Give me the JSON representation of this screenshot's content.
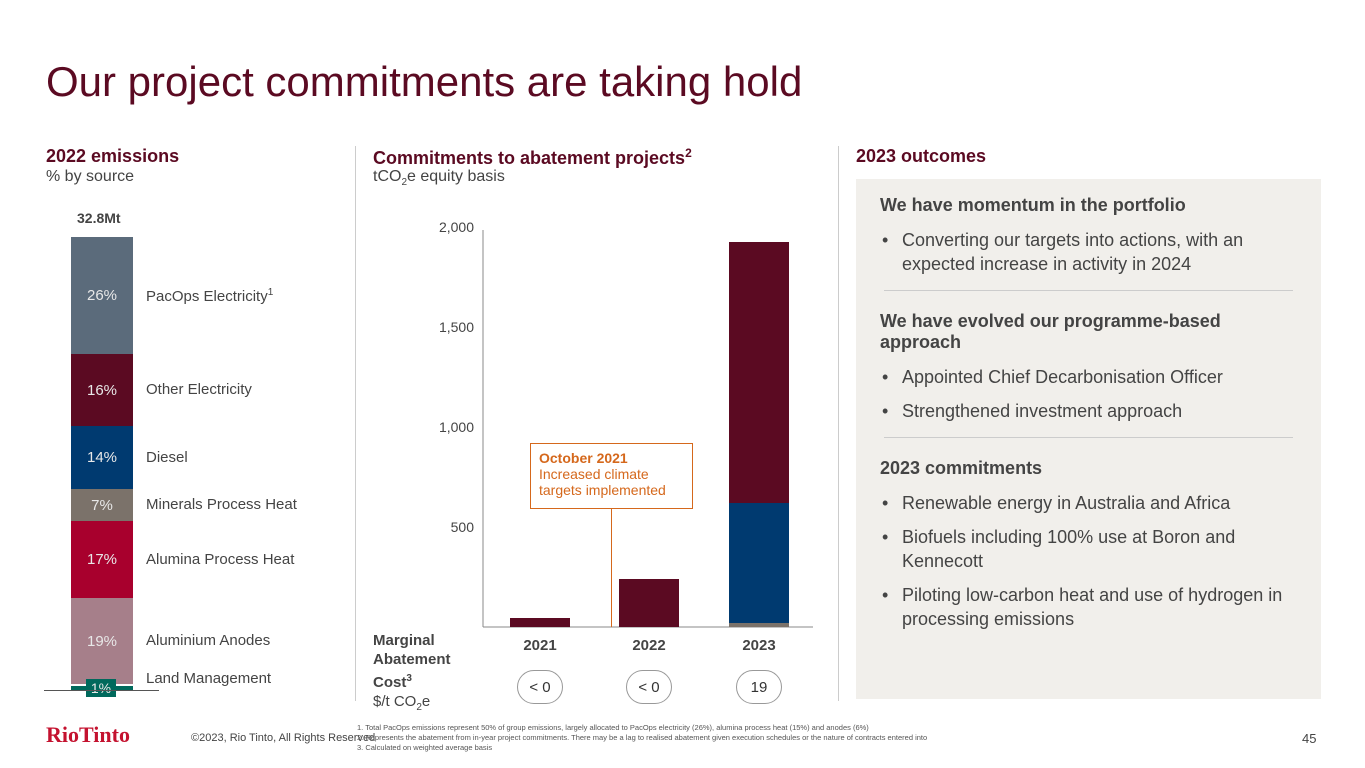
{
  "title": "Our project commitments are taking hold",
  "left": {
    "heading": "2022 emissions",
    "subheading": "% by source",
    "total": "32.8Mt",
    "segments": [
      {
        "pct": "26%",
        "label": "PacOps Electricity",
        "sup": "1",
        "value": 26,
        "color": "#5b6b7b"
      },
      {
        "pct": "16%",
        "label": "Other Electricity",
        "value": 16,
        "color": "#5b0a22"
      },
      {
        "pct": "14%",
        "label": "Diesel",
        "value": 14,
        "color": "#003a70"
      },
      {
        "pct": "7%",
        "label": "Minerals Process Heat",
        "value": 7,
        "color": "#7b726a"
      },
      {
        "pct": "17%",
        "label": "Alumina Process Heat",
        "value": 17,
        "color": "#a8002d"
      },
      {
        "pct": "19%",
        "label": "Aluminium Anodes",
        "value": 19,
        "color": "#a67f8a"
      },
      {
        "pct": "1%",
        "label": "Land Management",
        "value": 1,
        "color": "#00695c"
      }
    ]
  },
  "middle": {
    "heading": "Commitments to abatement projects",
    "heading_sup": "2",
    "subheading_pre": "tCO",
    "subheading_sub": "2",
    "subheading_post": "e equity basis",
    "annotation": {
      "title": "October 2021",
      "line1": "Increased climate",
      "line2": "targets implemented"
    },
    "mac_label1": "Marginal",
    "mac_label2": "Abatement",
    "mac_label3": "Cost",
    "mac_sup": "3",
    "mac_unit_pre": "$/t CO",
    "mac_unit_sub": "2",
    "mac_unit_post": "e",
    "mac_values": [
      "< 0",
      "< 0",
      "19"
    ]
  },
  "chart_data": {
    "type": "bar",
    "stacked": true,
    "categories": [
      "2021",
      "2022",
      "2023"
    ],
    "ylim": [
      0,
      2000
    ],
    "yticks": [
      "500",
      "1,000",
      "1,500",
      "2,000"
    ],
    "ytick_values": [
      500,
      1000,
      1500,
      2000
    ],
    "series": [
      {
        "name": "grey",
        "color": "#7b726a",
        "values": [
          0,
          0,
          20
        ]
      },
      {
        "name": "blue",
        "color": "#003a70",
        "values": [
          0,
          0,
          600
        ]
      },
      {
        "name": "maroon",
        "color": "#5b0a22",
        "values": [
          45,
          240,
          1305
        ]
      }
    ]
  },
  "right": {
    "heading": "2023 outcomes",
    "sections": [
      {
        "title": "We have momentum in the portfolio",
        "bullets": [
          "Converting our targets into actions, with an expected increase in activity in 2024"
        ]
      },
      {
        "title": "We have evolved our programme-based approach",
        "bullets": [
          "Appointed Chief Decarbonisation Officer",
          "Strengthened investment approach"
        ]
      },
      {
        "title": "2023 commitments",
        "bullets": [
          "Renewable energy in Australia and Africa",
          "Biofuels including 100% use at Boron and Kennecott",
          "Piloting low-carbon heat and use of hydrogen in processing emissions"
        ]
      }
    ]
  },
  "footer": {
    "logo": "RioTinto",
    "copyright": "©2023, Rio Tinto, All Rights Reserved",
    "page": "45",
    "notes": [
      "1. Total PacOps emissions represent 50% of group emissions, largely allocated to PacOps electricity (26%), alumina process heat (15%) and anodes (6%)",
      "2. Represents the abatement from in-year project commitments. There may be a lag to realised abatement given execution schedules or the nature of contracts entered into",
      "3. Calculated on weighted average basis"
    ]
  }
}
